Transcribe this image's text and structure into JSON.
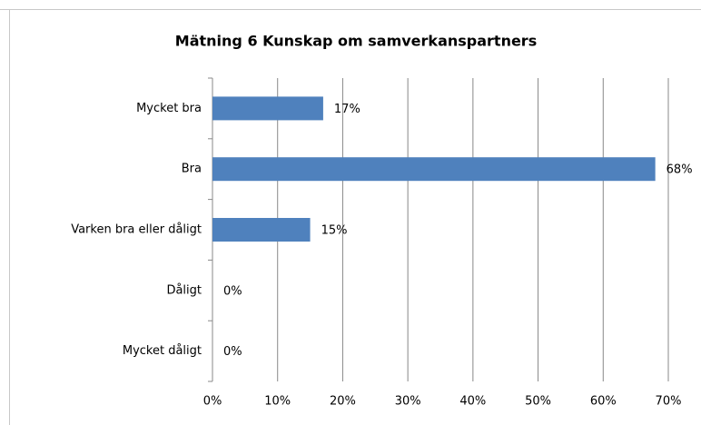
{
  "chart_data": {
    "type": "barh",
    "title": "Mätning 6 Kunskap om samverkanspartners",
    "categories": [
      "Mycket bra",
      "Bra",
      "Varken bra eller dåligt",
      "Dåligt",
      "Mycket dåligt"
    ],
    "values": [
      17,
      68,
      15,
      0,
      0
    ],
    "value_labels": [
      "17%",
      "68%",
      "15%",
      "0%",
      "0%"
    ],
    "color": "#4f81bd",
    "xlim": [
      0,
      70
    ],
    "xticks": [
      {
        "value": 0,
        "label": "0%"
      },
      {
        "value": 10,
        "label": "10%"
      },
      {
        "value": 20,
        "label": "20%"
      },
      {
        "value": 30,
        "label": "30%"
      },
      {
        "value": 40,
        "label": "40%"
      },
      {
        "value": 50,
        "label": "50%"
      },
      {
        "value": 60,
        "label": "60%"
      },
      {
        "value": 70,
        "label": "70%"
      }
    ],
    "grid": true
  }
}
